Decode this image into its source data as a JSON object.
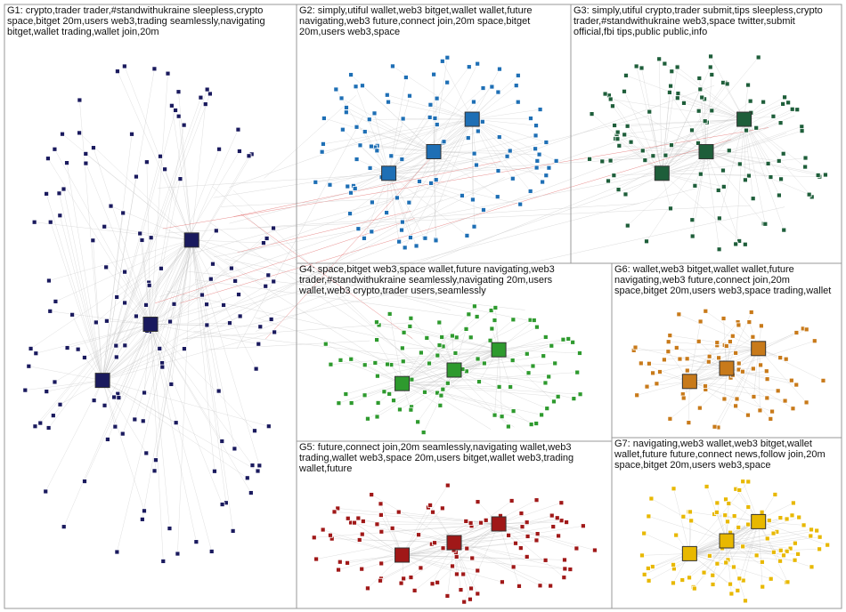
{
  "groups": [
    {
      "lines": [
        "G1: crypto,trader  trader,#standwithukraine  sleepless,crypto",
        "space,bitget  20m,users  web3,trading  seamlessly,navigating",
        "bitget,wallet  trading,wallet  join,20m"
      ],
      "color": "#1a1a5e"
    },
    {
      "lines": [
        "G2: simply,utiful  wallet,web3  bitget,wallet  wallet,future",
        "navigating,web3  future,connect  join,20m  space,bitget",
        "20m,users  web3,space"
      ],
      "color": "#1e6fb5"
    },
    {
      "lines": [
        "G3: simply,utiful  crypto,trader  submit,tips  sleepless,crypto",
        "trader,#standwithukraine  web3,space  twitter,submit",
        "official,fbi  tips,public  public,info"
      ],
      "color": "#1e5e3a"
    },
    {
      "lines": [
        "G4: space,bitget  web3,space  wallet,future  navigating,web3",
        "trader,#standwithukraine  seamlessly,navigating  20m,users",
        "wallet,web3  crypto,trader  users,seamlessly"
      ],
      "color": "#2e9a2e"
    },
    {
      "lines": [
        "G5: future,connect  join,20m  seamlessly,navigating  wallet,web3",
        "trading,wallet  web3,space  20m,users  bitget,wallet  web3,trading",
        "wallet,future"
      ],
      "color": "#a01818"
    },
    {
      "lines": [
        "G6: wallet,web3  bitget,wallet  wallet,future",
        "navigating,web3  future,connect  join,20m",
        "space,bitget  20m,users  web3,space  trading,wallet"
      ],
      "color": "#c87a1a"
    },
    {
      "lines": [
        "G7: navigating,web3  wallet,web3  bitget,wallet",
        "wallet,future  future,connect  news,follow  join,20m",
        "space,bitget  20m,users  web3,space"
      ],
      "color": "#e8b800"
    }
  ]
}
